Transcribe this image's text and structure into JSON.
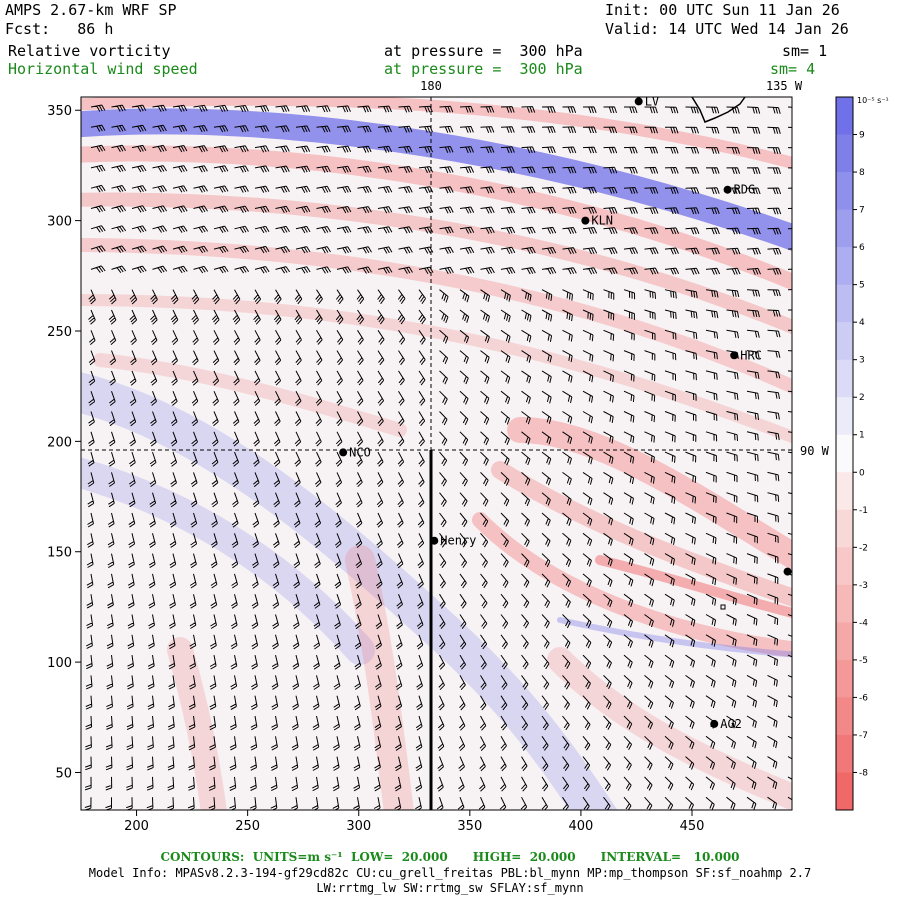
{
  "header": {
    "model": "AMPS 2.67-km WRF SP",
    "init": "Init: 00 UTC Sun 11 Jan 26",
    "fcst": "Fcst:   86 h",
    "valid": "Valid: 14 UTC Wed 14 Jan 26",
    "field1": "Relative vorticity",
    "field1_level": "at pressure =  300 hPa",
    "field1_sm": "sm= 1",
    "field2": "Horizontal wind speed",
    "field2_level": "at pressure =  300 hPa",
    "field2_sm": "sm= 4"
  },
  "map_labels": {
    "lon180": "180",
    "lon135w": "135 W",
    "lon90w": "90 W"
  },
  "stations": [
    {
      "name": "LV",
      "x": 426,
      "y": 354
    },
    {
      "name": "RDG",
      "x": 466,
      "y": 314
    },
    {
      "name": "KLN",
      "x": 402,
      "y": 300
    },
    {
      "name": "HRC",
      "x": 469,
      "y": 239
    },
    {
      "name": "NCO",
      "x": 293,
      "y": 195
    },
    {
      "name": "Henry",
      "x": 334,
      "y": 155
    },
    {
      "name": "",
      "x": 493,
      "y": 141
    },
    {
      "name": "AG2",
      "x": 460,
      "y": 72
    }
  ],
  "axes": {
    "x_ticks": [
      200,
      250,
      300,
      350,
      400,
      450
    ],
    "y_ticks": [
      50,
      100,
      150,
      200,
      250,
      300,
      350
    ],
    "xlim": [
      175,
      495
    ],
    "ylim": [
      33,
      356
    ]
  },
  "colorbar": {
    "unit": "10⁻⁵ s⁻¹",
    "levels": [
      9,
      8,
      7,
      6,
      5,
      4,
      3,
      2,
      1,
      0,
      -1,
      -2,
      -3,
      -4,
      -5,
      -6,
      -7,
      -8
    ]
  },
  "colors": {
    "positive": "#7070e8",
    "negative": "#f06868",
    "contour_label": "#1a8a1a"
  },
  "footer": {
    "contours": "CONTOURS:  UNITS=m s⁻¹  LOW=  20.000      HIGH=  20.000      INTERVAL=   10.000",
    "model_info": "Model Info: MPASv8.2.3-194-gf29cd82c CU:cu_grell_freitas PBL:bl_mynn MP:mp_thompson SF:sf_noahmp 2.7",
    "model_info2": "LW:rrtmg_lw SW:rrtmg_sw SFLAY:sf_mynn"
  }
}
